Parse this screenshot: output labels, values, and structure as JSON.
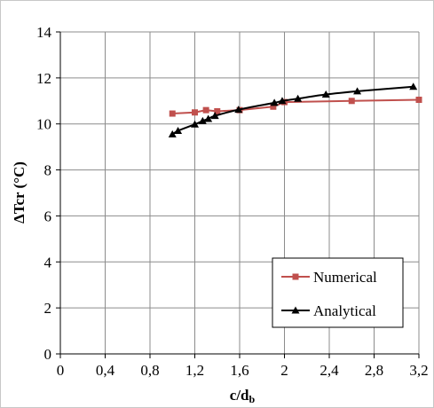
{
  "chart_data": {
    "type": "line",
    "title": "",
    "xlabel_main": "c/d",
    "xlabel_sub": "b",
    "ylabel": "ΔTcr (°C)",
    "xlim": [
      0,
      3.2
    ],
    "ylim": [
      0,
      14
    ],
    "x_ticks": [
      0,
      0.4,
      0.8,
      1.2,
      1.6,
      2.0,
      2.4,
      2.8,
      3.2
    ],
    "x_tick_labels": [
      "0",
      "0,4",
      "0,8",
      "1,2",
      "1,6",
      "2",
      "2,4",
      "2,8",
      "3,2"
    ],
    "y_ticks": [
      0,
      2,
      4,
      6,
      8,
      10,
      12,
      14
    ],
    "y_tick_labels": [
      "0",
      "2",
      "4",
      "6",
      "8",
      "10",
      "12",
      "14"
    ],
    "grid": true,
    "legend_position": "bottom-right",
    "series": [
      {
        "name": "Numerical",
        "color": "#c0504d",
        "marker": "square",
        "x": [
          1.0,
          1.2,
          1.3,
          1.4,
          1.6,
          1.9,
          2.0,
          2.6,
          3.2
        ],
        "y": [
          10.45,
          10.5,
          10.6,
          10.55,
          10.6,
          10.75,
          10.95,
          11.0,
          11.05
        ]
      },
      {
        "name": "Analytical",
        "color": "#000000",
        "marker": "triangle",
        "x": [
          1.0,
          1.05,
          1.2,
          1.27,
          1.32,
          1.38,
          1.59,
          1.91,
          1.98,
          2.12,
          2.37,
          2.65,
          3.15
        ],
        "y": [
          9.55,
          9.7,
          9.98,
          10.13,
          10.22,
          10.35,
          10.62,
          10.92,
          11.0,
          11.1,
          11.28,
          11.42,
          11.62
        ]
      }
    ]
  }
}
